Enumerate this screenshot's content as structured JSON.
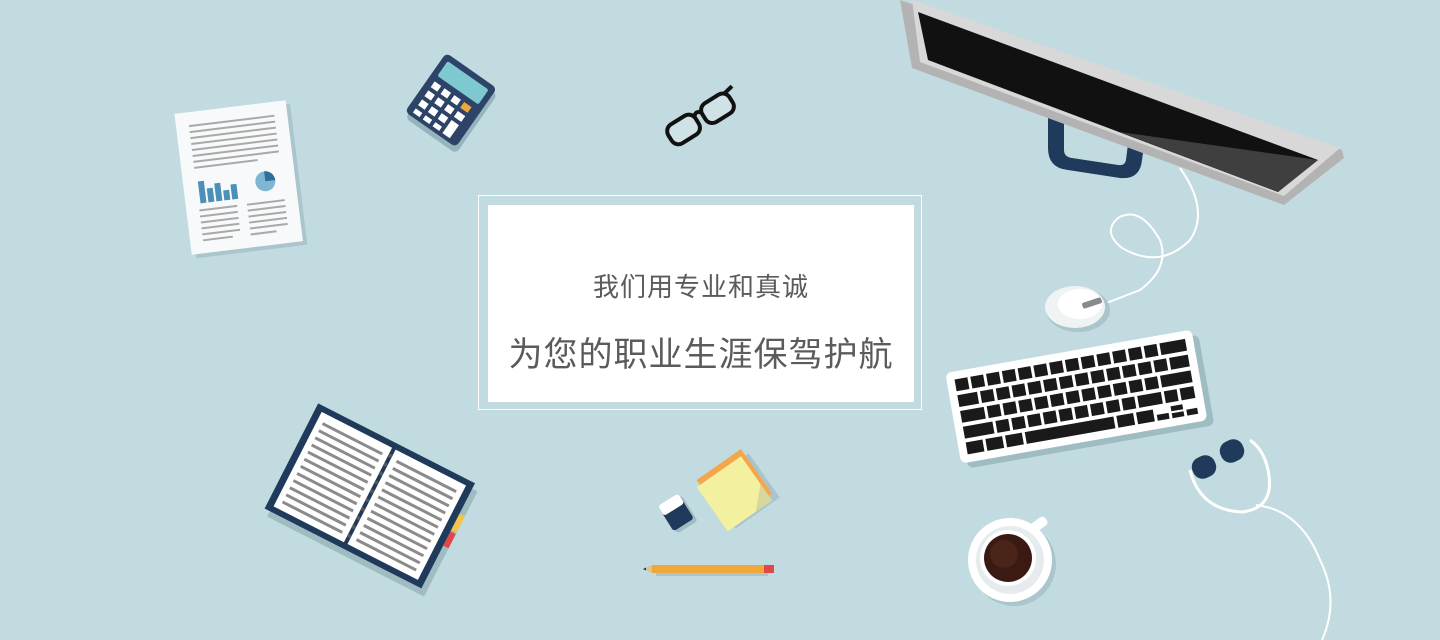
{
  "banner": {
    "line1": "我们用专业和真诚",
    "line2": "为您的职业生涯保驾护航"
  },
  "colors": {
    "background": "#c2dbe0",
    "card": "#ffffff",
    "text": "#5b5b5b",
    "navy": "#1f3a5a",
    "pencil": "#f0a83a"
  },
  "illustrations": [
    "document-icon",
    "calculator-icon",
    "glasses-icon",
    "monitor-icon",
    "mouse-icon",
    "keyboard-icon",
    "headphones-icon",
    "coffee-cup-icon",
    "sticky-notes-icon",
    "eraser-icon",
    "pencil-icon",
    "notebook-icon"
  ]
}
